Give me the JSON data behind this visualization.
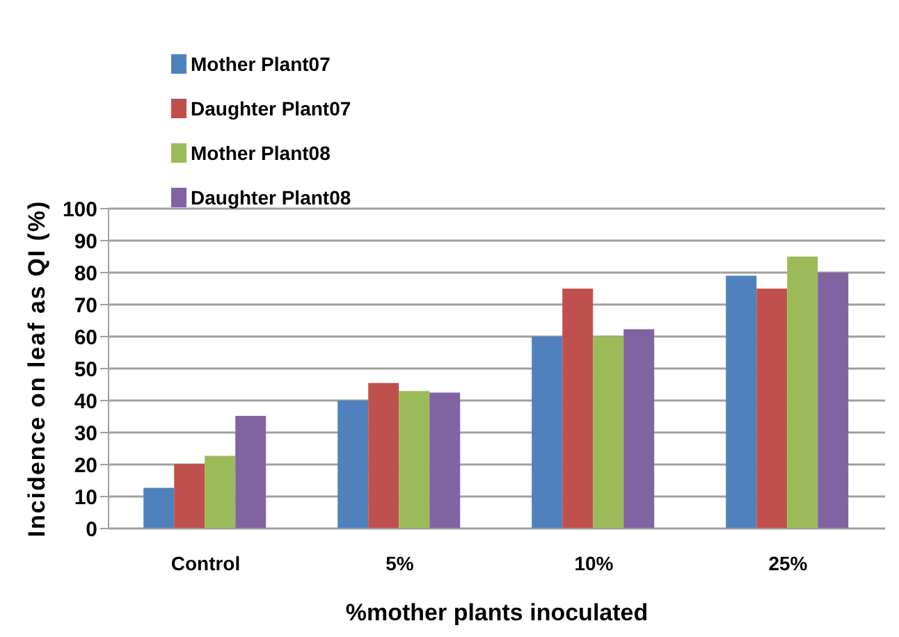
{
  "chart_data": {
    "type": "bar",
    "xlabel": "%mother plants inoculated",
    "ylabel": "Incidence on leaf as QI (%)",
    "categories": [
      "Control",
      "5%",
      "10%",
      "25%"
    ],
    "series": [
      {
        "name": "Mother Plant07",
        "color": "#4f81bd",
        "values": [
          12.7,
          40,
          60,
          79
        ]
      },
      {
        "name": "Daughter Plant07",
        "color": "#c0504d",
        "values": [
          20.2,
          45.5,
          75,
          75
        ]
      },
      {
        "name": "Mother Plant08",
        "color": "#9bbb59",
        "values": [
          22.7,
          43,
          60,
          85
        ]
      },
      {
        "name": "Daughter Plant08",
        "color": "#8064a2",
        "values": [
          35.2,
          42.5,
          62.3,
          80
        ]
      }
    ],
    "ylim": [
      0,
      100
    ],
    "yticks": [
      0,
      10,
      20,
      30,
      40,
      50,
      60,
      70,
      80,
      90,
      100
    ],
    "grid": "y",
    "legend": "top left"
  }
}
